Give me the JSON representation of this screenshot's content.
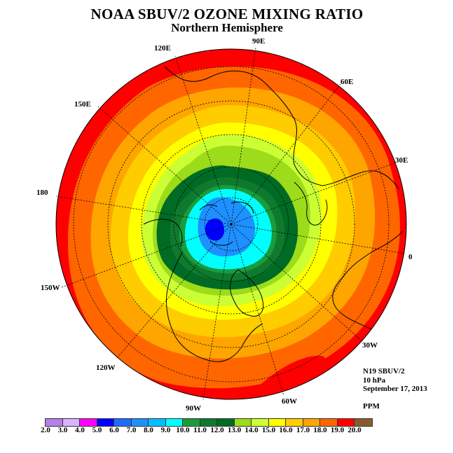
{
  "title": "NOAA SBUV/2 OZONE MIXING RATIO",
  "subtitle": "Northern Hemisphere",
  "longitude_labels": [
    "90E",
    "60E",
    "30E",
    "0",
    "30W",
    "60W",
    "90W",
    "120W",
    "150W",
    "180",
    "150E",
    "120E"
  ],
  "info": {
    "instrument": "N19 SBUV/2",
    "pressure_level": "10 hPa",
    "date": "September 17, 2013",
    "units": "PPM"
  },
  "colorbar": {
    "ticks": [
      "2.0",
      "3.0",
      "4.0",
      "5.0",
      "6.0",
      "7.0",
      "8.0",
      "9.0",
      "10.0",
      "11.0",
      "12.0",
      "13.0",
      "14.0",
      "15.0",
      "16.0",
      "17.0",
      "18.0",
      "19.0",
      "20.0"
    ],
    "colors": [
      "#b57fe6",
      "#d9b3ff",
      "#ff00ff",
      "#0000ff",
      "#1e6cff",
      "#1e90ff",
      "#00bfff",
      "#00ffff",
      "#1a9c3c",
      "#0f7a2e",
      "#006b24",
      "#9cdc1a",
      "#ccff33",
      "#ffff00",
      "#ffcc00",
      "#ffa500",
      "#ff6600",
      "#ff0000",
      "#8b5a2b"
    ]
  },
  "field_colors": {
    "pole_min": "#0000ff",
    "low_blue": "#1e90ff",
    "cyan": "#00ffff",
    "green_light": "#1a9c3c",
    "green_mid": "#0f7a2e",
    "green_dark": "#006b24",
    "lime": "#9cdc1a",
    "yellow_green": "#ccff33",
    "yellow": "#ffff00",
    "gold": "#ffcc00",
    "orange": "#ffa500",
    "dark_orange": "#ff6600",
    "red": "#ff0000"
  }
}
